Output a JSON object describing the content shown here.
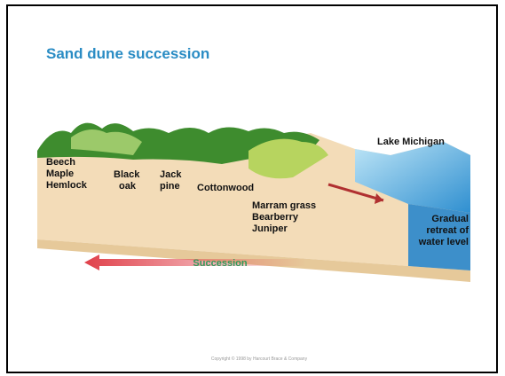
{
  "title": "Sand dune succession",
  "zones": [
    {
      "lines": [
        "Beech",
        "Maple",
        "Hemlock"
      ]
    },
    {
      "lines": [
        "Black",
        "oak"
      ]
    },
    {
      "lines": [
        "Jack",
        "pine"
      ]
    },
    {
      "lines": [
        "Cottonwood"
      ]
    },
    {
      "lines": [
        "Marram grass",
        "Bearberry",
        "Juniper"
      ]
    }
  ],
  "lake": "Lake Michigan",
  "retreat": {
    "lines": [
      "Gradual",
      "retreat of",
      "water level"
    ]
  },
  "arrow_label": "Succession",
  "footer": "Copyright © 1998 by Harcourt Brace & Company"
}
